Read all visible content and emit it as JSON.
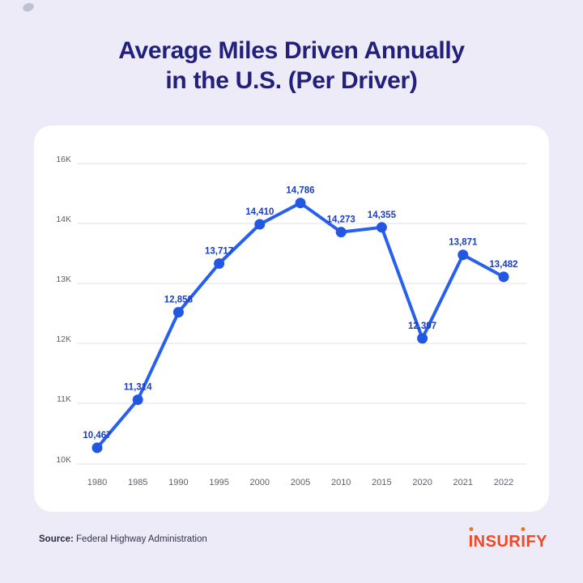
{
  "title": {
    "line1": "Average Miles Driven Annually",
    "line2": "in the U.S. (Per Driver)"
  },
  "chart_data": {
    "type": "line",
    "title": "Average Miles Driven Annually in the U.S. (Per Driver)",
    "x": [
      "1980",
      "1985",
      "1990",
      "1995",
      "2000",
      "2005",
      "2010",
      "2015",
      "2020",
      "2021",
      "2022"
    ],
    "values": [
      10467,
      11314,
      12858,
      13717,
      14410,
      14786,
      14273,
      14355,
      12397,
      13871,
      13482
    ],
    "point_labels": [
      "10,467",
      "11,314",
      "12,858",
      "13,717",
      "14,410",
      "14,786",
      "14,273",
      "14,355",
      "12,397",
      "13,871",
      "13,482"
    ],
    "y_tick_labels_bottom_to_top": [
      "10K",
      "11K",
      "12K",
      "13K",
      "14K",
      "16K"
    ],
    "xlabel": "",
    "ylabel": "",
    "ylim": [
      9800,
      15600
    ],
    "grid": "horizontal",
    "legend": false
  },
  "footer": {
    "source_label": "Source:",
    "source_text": "Federal Highway Administration",
    "logo_text": "INSURIFY"
  },
  "colors": {
    "page_background": "#ECEBF7",
    "card_background": "#FFFFFF",
    "title_text": "#23207C",
    "line": "#2660EC",
    "point": "#2257E3",
    "point_label": "#1B3EC1",
    "gridline": "#EAEAF2",
    "axis_text": "#5F6068",
    "source_text": "#33334E",
    "logo": "#F4461F",
    "logo_dot": "#F0761E"
  }
}
